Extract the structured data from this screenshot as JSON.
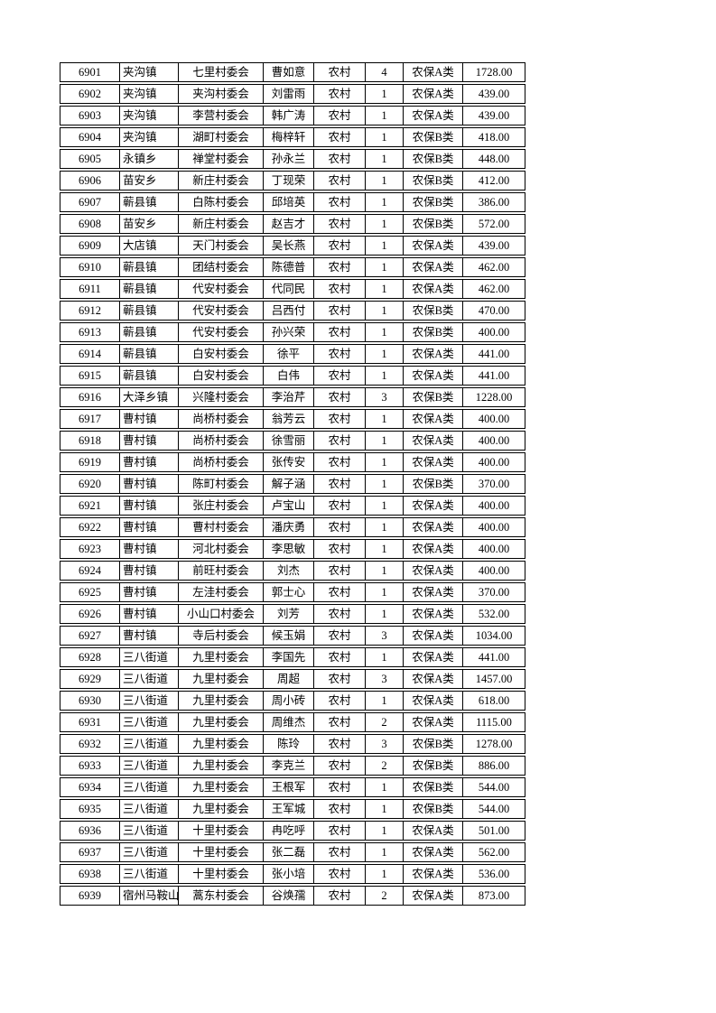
{
  "page": {
    "background_color": "#ffffff",
    "text_color": "#000000",
    "table_border_color": "#000000"
  },
  "table": {
    "column_keys": [
      "sequence-number",
      "town",
      "village-committee",
      "person-name",
      "residence-type",
      "person-count",
      "insurance-category",
      "amount"
    ],
    "rows": [
      [
        "6901",
        "夹沟镇",
        "七里村委会",
        "曹如意",
        "农村",
        "4",
        "农保A类",
        "1728.00"
      ],
      [
        "6902",
        "夹沟镇",
        "夹沟村委会",
        "刘雷雨",
        "农村",
        "1",
        "农保A类",
        "439.00"
      ],
      [
        "6903",
        "夹沟镇",
        "李营村委会",
        "韩广涛",
        "农村",
        "1",
        "农保A类",
        "439.00"
      ],
      [
        "6904",
        "夹沟镇",
        "湖町村委会",
        "梅梓轩",
        "农村",
        "1",
        "农保B类",
        "418.00"
      ],
      [
        "6905",
        "永镇乡",
        "禅堂村委会",
        "孙永兰",
        "农村",
        "1",
        "农保B类",
        "448.00"
      ],
      [
        "6906",
        "苗安乡",
        "新庄村委会",
        "丁现荣",
        "农村",
        "1",
        "农保B类",
        "412.00"
      ],
      [
        "6907",
        "蕲县镇",
        "白陈村委会",
        "邱培英",
        "农村",
        "1",
        "农保B类",
        "386.00"
      ],
      [
        "6908",
        "苗安乡",
        "新庄村委会",
        "赵吉才",
        "农村",
        "1",
        "农保B类",
        "572.00"
      ],
      [
        "6909",
        "大店镇",
        "天门村委会",
        "吴长燕",
        "农村",
        "1",
        "农保A类",
        "439.00"
      ],
      [
        "6910",
        "蕲县镇",
        "团结村委会",
        "陈德普",
        "农村",
        "1",
        "农保A类",
        "462.00"
      ],
      [
        "6911",
        "蕲县镇",
        "代安村委会",
        "代同民",
        "农村",
        "1",
        "农保A类",
        "462.00"
      ],
      [
        "6912",
        "蕲县镇",
        "代安村委会",
        "吕西付",
        "农村",
        "1",
        "农保B类",
        "470.00"
      ],
      [
        "6913",
        "蕲县镇",
        "代安村委会",
        "孙兴荣",
        "农村",
        "1",
        "农保B类",
        "400.00"
      ],
      [
        "6914",
        "蕲县镇",
        "白安村委会",
        "徐平",
        "农村",
        "1",
        "农保A类",
        "441.00"
      ],
      [
        "6915",
        "蕲县镇",
        "白安村委会",
        "白伟",
        "农村",
        "1",
        "农保A类",
        "441.00"
      ],
      [
        "6916",
        "大泽乡镇",
        "兴隆村委会",
        "李治芹",
        "农村",
        "3",
        "农保B类",
        "1228.00"
      ],
      [
        "6917",
        "曹村镇",
        "尚桥村委会",
        "翁芳云",
        "农村",
        "1",
        "农保A类",
        "400.00"
      ],
      [
        "6918",
        "曹村镇",
        "尚桥村委会",
        "徐雪丽",
        "农村",
        "1",
        "农保A类",
        "400.00"
      ],
      [
        "6919",
        "曹村镇",
        "尚桥村委会",
        "张传安",
        "农村",
        "1",
        "农保A类",
        "400.00"
      ],
      [
        "6920",
        "曹村镇",
        "陈町村委会",
        "解子涵",
        "农村",
        "1",
        "农保B类",
        "370.00"
      ],
      [
        "6921",
        "曹村镇",
        "张庄村委会",
        "卢宝山",
        "农村",
        "1",
        "农保A类",
        "400.00"
      ],
      [
        "6922",
        "曹村镇",
        "曹村村委会",
        "潘庆勇",
        "农村",
        "1",
        "农保A类",
        "400.00"
      ],
      [
        "6923",
        "曹村镇",
        "河北村委会",
        "李思敏",
        "农村",
        "1",
        "农保A类",
        "400.00"
      ],
      [
        "6924",
        "曹村镇",
        "前旺村委会",
        "刘杰",
        "农村",
        "1",
        "农保A类",
        "400.00"
      ],
      [
        "6925",
        "曹村镇",
        "左洼村委会",
        "郭士心",
        "农村",
        "1",
        "农保A类",
        "370.00"
      ],
      [
        "6926",
        "曹村镇",
        "小山口村委会",
        "刘芳",
        "农村",
        "1",
        "农保A类",
        "532.00"
      ],
      [
        "6927",
        "曹村镇",
        "寺后村委会",
        "候玉娟",
        "农村",
        "3",
        "农保A类",
        "1034.00"
      ],
      [
        "6928",
        "三八街道",
        "九里村委会",
        "李国先",
        "农村",
        "1",
        "农保A类",
        "441.00"
      ],
      [
        "6929",
        "三八街道",
        "九里村委会",
        "周超",
        "农村",
        "3",
        "农保A类",
        "1457.00"
      ],
      [
        "6930",
        "三八街道",
        "九里村委会",
        "周小砖",
        "农村",
        "1",
        "农保A类",
        "618.00"
      ],
      [
        "6931",
        "三八街道",
        "九里村委会",
        "周维杰",
        "农村",
        "2",
        "农保A类",
        "1115.00"
      ],
      [
        "6932",
        "三八街道",
        "九里村委会",
        "陈玲",
        "农村",
        "3",
        "农保B类",
        "1278.00"
      ],
      [
        "6933",
        "三八街道",
        "九里村委会",
        "李克兰",
        "农村",
        "2",
        "农保B类",
        "886.00"
      ],
      [
        "6934",
        "三八街道",
        "九里村委会",
        "王根军",
        "农村",
        "1",
        "农保B类",
        "544.00"
      ],
      [
        "6935",
        "三八街道",
        "九里村委会",
        "王军城",
        "农村",
        "1",
        "农保B类",
        "544.00"
      ],
      [
        "6936",
        "三八街道",
        "十里村委会",
        "冉吃呼",
        "农村",
        "1",
        "农保A类",
        "501.00"
      ],
      [
        "6937",
        "三八街道",
        "十里村委会",
        "张二磊",
        "农村",
        "1",
        "农保A类",
        "562.00"
      ],
      [
        "6938",
        "三八街道",
        "十里村委会",
        "张小培",
        "农村",
        "1",
        "农保A类",
        "536.00"
      ],
      [
        "6939",
        "宿州马鞍山",
        "蒿东村委会",
        "谷焕孺",
        "农村",
        "2",
        "农保A类",
        "873.00"
      ]
    ]
  }
}
